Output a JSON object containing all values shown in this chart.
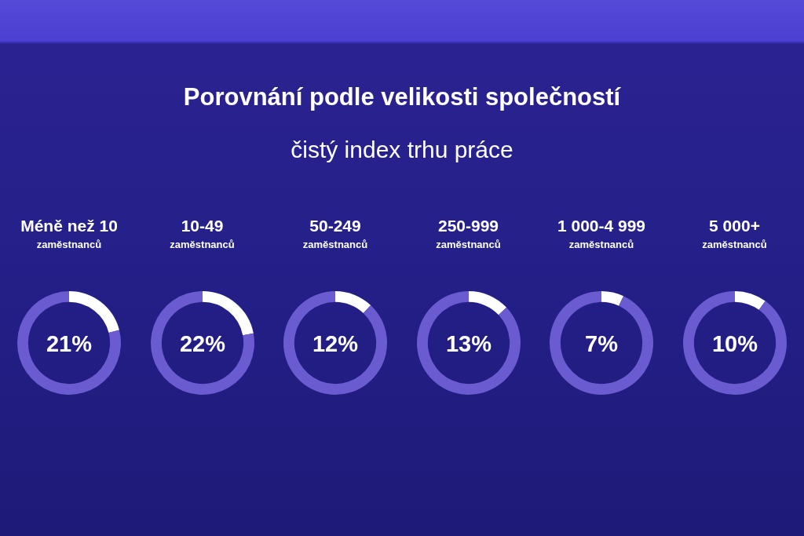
{
  "chart_data": [
    {
      "type": "other",
      "title": "Porovnání podle velikosti společností",
      "subtitle": "čistý index trhu práce"
    },
    {
      "type": "donut",
      "title": "Méně než 10",
      "subtitle": "zaměstnanců",
      "categories": [
        null,
        null
      ],
      "values": [
        21,
        79
      ],
      "colors": [
        "#ffffff",
        "#6a5cd0"
      ],
      "annotations": [
        "21%"
      ]
    },
    {
      "type": "donut",
      "title": "10-49",
      "subtitle": "zaměstnanců",
      "categories": [
        null,
        null
      ],
      "values": [
        22,
        78
      ],
      "colors": [
        "#ffffff",
        "#6a5cd0"
      ],
      "annotations": [
        "22%"
      ]
    },
    {
      "type": "donut",
      "title": "50-249",
      "subtitle": "zaměstnanců",
      "categories": [
        null,
        null
      ],
      "values": [
        12,
        88
      ],
      "colors": [
        "#ffffff",
        "#6a5cd0"
      ],
      "annotations": [
        "12%"
      ]
    },
    {
      "type": "donut",
      "title": "250-999",
      "subtitle": "zaměstnanců",
      "categories": [
        null,
        null
      ],
      "values": [
        13,
        87
      ],
      "colors": [
        "#ffffff",
        "#6a5cd0"
      ],
      "annotations": [
        "13%"
      ]
    },
    {
      "type": "donut",
      "title": "1 000-4 999",
      "subtitle": "zaměstnanců",
      "categories": [
        null,
        null
      ],
      "values": [
        7,
        93
      ],
      "colors": [
        "#ffffff",
        "#6a5cd0"
      ],
      "annotations": [
        "7%"
      ]
    },
    {
      "type": "donut",
      "title": "5 000+",
      "subtitle": "zaměstnanců",
      "categories": [
        null,
        null
      ],
      "values": [
        10,
        90
      ],
      "colors": [
        "#ffffff",
        "#6a5cd0"
      ],
      "annotations": [
        "10%"
      ]
    }
  ]
}
